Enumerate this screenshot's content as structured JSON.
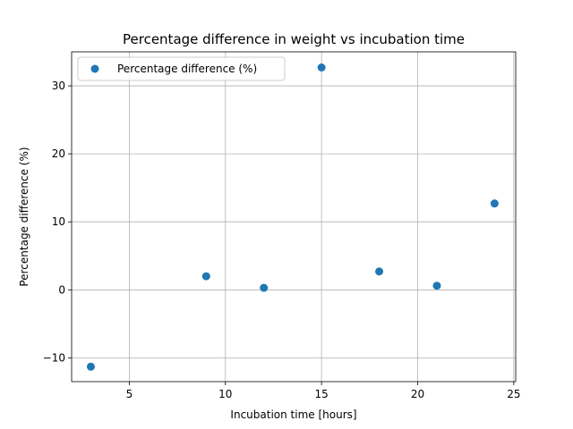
{
  "chart_data": {
    "type": "scatter",
    "title": "Percentage difference in weight vs incubation time",
    "xlabel": "Incubation time [hours]",
    "ylabel": "Percentage difference (%)",
    "xlim": [
      2,
      25.1
    ],
    "ylim": [
      -13.5,
      35
    ],
    "xticks": [
      5,
      10,
      15,
      20,
      25
    ],
    "yticks": [
      -10,
      0,
      10,
      20,
      30
    ],
    "ytick_labels": [
      "−10",
      "0",
      "10",
      "20",
      "30"
    ],
    "grid": true,
    "legend_position": "top-left",
    "series": [
      {
        "name": "Percentage difference (%)",
        "color": "#1f77b4",
        "x": [
          3,
          9,
          12,
          15,
          18,
          21,
          24
        ],
        "y": [
          -11.3,
          2.0,
          0.3,
          32.7,
          2.7,
          0.6,
          12.7
        ]
      }
    ]
  }
}
